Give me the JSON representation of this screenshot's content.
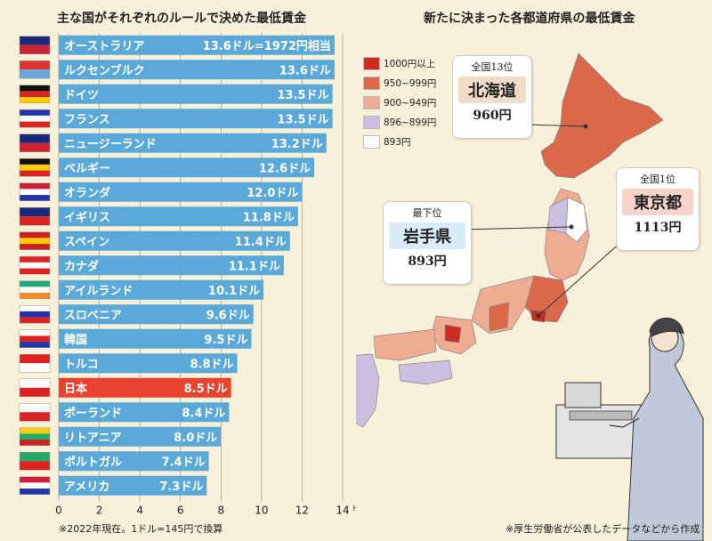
{
  "left_title": "主な国がそれぞれのルールで決めた最低賃金",
  "right_title": "新たに決まった各都道府県の最低賃金",
  "left_footnote": "※2022年現在。1ドル=145円で換算",
  "right_footnote": "※厚生労働省が公表したデータなどから作成",
  "chart_data": {
    "type": "bar",
    "orientation": "horizontal",
    "unit": "ドル",
    "xlim": [
      0,
      14
    ],
    "xticks": [
      0,
      2,
      4,
      6,
      8,
      10,
      12,
      14
    ],
    "xtick_unit_label": "ドル",
    "categories": [
      "オーストラリア",
      "ルクセンブルク",
      "ドイツ",
      "フランス",
      "ニュージーランド",
      "ベルギー",
      "オランダ",
      "イギリス",
      "スペイン",
      "カナダ",
      "アイルランド",
      "スロベニア",
      "韓国",
      "トルコ",
      "日本",
      "ポーランド",
      "リトアニア",
      "ポルトガル",
      "アメリカ"
    ],
    "values": [
      13.6,
      13.6,
      13.5,
      13.5,
      13.2,
      12.6,
      12.0,
      11.8,
      11.4,
      11.1,
      10.1,
      9.6,
      9.5,
      8.8,
      8.5,
      8.4,
      8.0,
      7.4,
      7.3
    ],
    "value_labels": [
      "13.6ドル=1972円相当",
      "13.6ドル",
      "13.5ドル",
      "13.5ドル",
      "13.2ドル",
      "12.6ドル",
      "12.0ドル",
      "11.8ドル",
      "11.4ドル",
      "11.1ドル",
      "10.1ドル",
      "9.6ドル",
      "9.5ドル",
      "8.8ドル",
      "8.5ドル",
      "8.4ドル",
      "8.0ドル",
      "7.4ドル",
      "7.3ドル"
    ],
    "highlight": "日本",
    "bar_color": "#5aa9d8",
    "highlight_color": "#e8432f",
    "grid": true
  },
  "legend": [
    {
      "label": "1000円以上",
      "color": "#cc2d1f"
    },
    {
      "label": "950~999円",
      "color": "#d9694a"
    },
    {
      "label": "900~949円",
      "color": "#eeac93"
    },
    {
      "label": "896~899円",
      "color": "#c8c0de"
    },
    {
      "label": "893円",
      "color": "#ffffff"
    }
  ],
  "callouts": {
    "hokkaido": {
      "rank": "全国13位",
      "name": "北海道",
      "wage": "960円"
    },
    "iwate": {
      "rank": "最下位",
      "name": "岩手県",
      "wage": "893円"
    },
    "tokyo": {
      "rank": "全国1位",
      "name": "東京都",
      "wage": "1113円"
    }
  }
}
